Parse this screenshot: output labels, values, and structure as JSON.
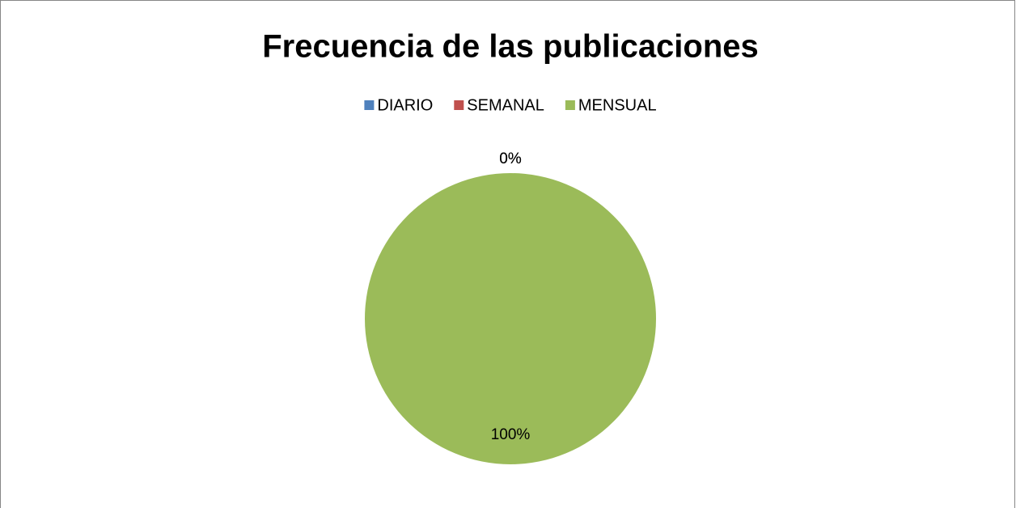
{
  "chart_data": {
    "type": "pie",
    "title": "Frecuencia de las publicaciones",
    "categories": [
      "DIARIO",
      "SEMANAL",
      "MENSUAL"
    ],
    "values": [
      0,
      0,
      100
    ],
    "value_labels": [
      "0%",
      "0%",
      "100%"
    ],
    "colors": [
      "#4f81bd",
      "#c0504d",
      "#9bbb59"
    ],
    "legend": "top"
  }
}
